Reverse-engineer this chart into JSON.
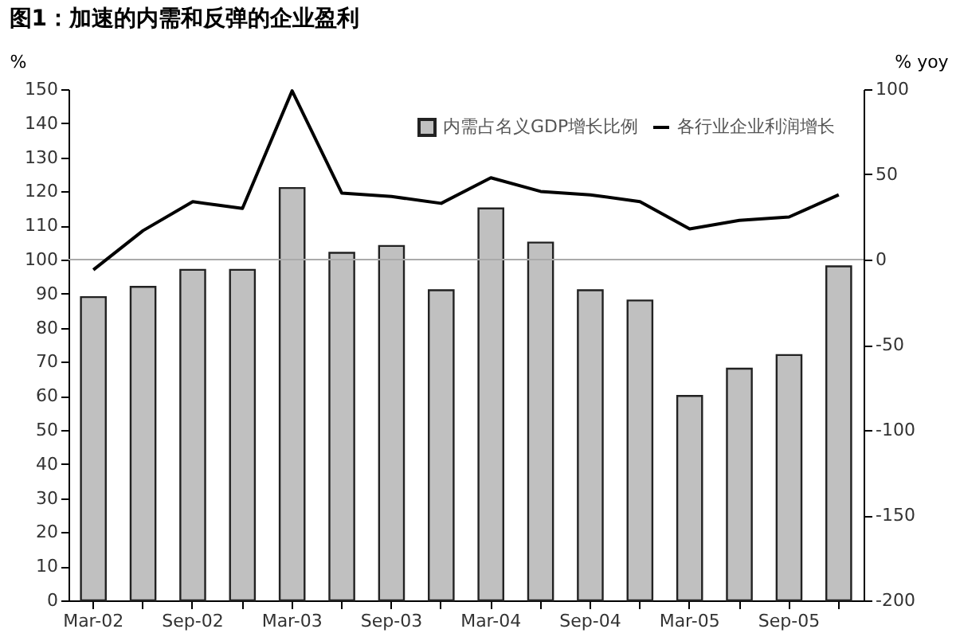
{
  "chart_data": {
    "type": "bar",
    "title": "图1：加速的内需和反弹的企业盈利",
    "ylabel": "%",
    "y2label": "% yoy",
    "categories": [
      "Mar-02",
      null,
      "Sep-02",
      null,
      "Mar-03",
      null,
      "Sep-03",
      null,
      "Mar-04",
      null,
      "Sep-04",
      null,
      "Mar-05",
      null,
      "Sep-05",
      null
    ],
    "series": [
      {
        "name": "内需占名义GDP增长比例",
        "color": "#c0c0c0",
        "values": [
          89,
          92,
          97,
          97,
          121,
          102,
          104,
          91,
          115,
          105,
          91,
          88,
          60,
          68,
          72,
          98
        ]
      },
      {
        "name": "各行业企业利润增长",
        "type": "line",
        "axis": "y2",
        "color": "#000000",
        "values": [
          -6,
          17,
          34,
          30,
          99,
          39,
          37,
          33,
          48,
          40,
          38,
          34,
          18,
          23,
          25,
          38
        ]
      }
    ],
    "ylim": [
      0,
      150
    ],
    "yticks": [
      0,
      10,
      20,
      30,
      40,
      50,
      60,
      70,
      80,
      90,
      100,
      110,
      120,
      130,
      140,
      150
    ],
    "y2lim": [
      -200,
      100
    ],
    "y2ticks": [
      -200,
      -150,
      -100,
      -50,
      0,
      50,
      100
    ],
    "ref_lines": [
      {
        "axis": "y",
        "value": 100,
        "color": "#aaaaaa"
      }
    ],
    "grid": false,
    "legend": "top right",
    "marker": "none",
    "line_style": "solid"
  }
}
